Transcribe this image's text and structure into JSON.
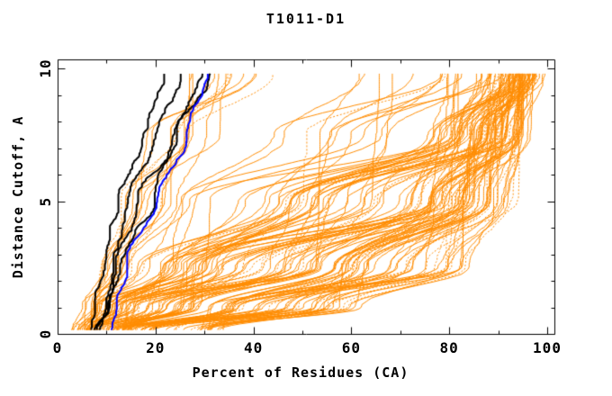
{
  "page": {
    "background": "#ffffff"
  },
  "chart_data": {
    "type": "line",
    "title": "T1011-D1",
    "xlabel": "Percent of Residues (CA)",
    "ylabel": "Distance Cutoff, A",
    "xlim": [
      0,
      101.4
    ],
    "ylim": [
      0,
      10.3
    ],
    "x_ticks_major": [
      0,
      20,
      40,
      60,
      80,
      100
    ],
    "x_ticks_minor": [
      10,
      30,
      50,
      70,
      90
    ],
    "y_ticks_major": [
      0,
      5,
      10
    ],
    "y_ticks_minor": [
      1,
      2,
      3,
      4,
      6,
      7,
      8,
      9
    ],
    "grid": false,
    "legend": "none",
    "colors": {
      "ensemble_orange": "#ff8c00",
      "highlight_black": "#000000",
      "highlight_blue": "#0000ff",
      "axis": "#000000",
      "background": "#ffffff"
    },
    "curve_cutoff_range": [
      0.15,
      9.8
    ],
    "knot_cutoffs": [
      0.15,
      1,
      2.5,
      5,
      7.5,
      9.8
    ],
    "black_curves_percent_at_knots": [
      [
        7.0,
        8.5,
        10.5,
        13.5,
        17.5,
        22.0
      ],
      [
        7.5,
        9.3,
        11.3,
        16.0,
        21.5,
        26.5
      ],
      [
        8.0,
        10.0,
        12.2,
        17.5,
        24.0,
        29.5
      ],
      [
        8.6,
        10.6,
        12.8,
        19.0,
        25.5,
        33.0
      ]
    ],
    "blue_curve_percent_at_knots": [
      11.0,
      12.0,
      14.0,
      20.5,
      27.0,
      31.5
    ],
    "orange_generator": {
      "seed": 7,
      "dash_fraction": 0.22,
      "wiggle_amp": 0.4,
      "classes": [
        {
          "name": "steep-left",
          "count": 14,
          "knots": [
            [
              3,
              7
            ],
            [
              5,
              10
            ],
            [
              8,
              15
            ],
            [
              12,
              24
            ],
            [
              16,
              33
            ],
            [
              20,
              45
            ]
          ]
        },
        {
          "name": "mid-arc",
          "count": 20,
          "knots": [
            [
              4,
              10
            ],
            [
              7,
              16
            ],
            [
              12,
              32
            ],
            [
              25,
              65
            ],
            [
              45,
              88
            ],
            [
              60,
              96
            ]
          ]
        },
        {
          "name": "river-band",
          "count": 46,
          "knots": [
            [
              5,
              16
            ],
            [
              10,
              30
            ],
            [
              20,
              55
            ],
            [
              45,
              85
            ],
            [
              75,
              94
            ],
            [
              86,
              97.5
            ]
          ]
        },
        {
          "name": "fast-right",
          "count": 48,
          "knots": [
            [
              10,
              34
            ],
            [
              30,
              62
            ],
            [
              55,
              84
            ],
            [
              75,
              93
            ],
            [
              85,
              96
            ],
            [
              90,
              98.5
            ]
          ]
        }
      ]
    },
    "note": "Cumulative distance-cutoff curves: ~128 orange model curves, 4 black highlighted curves, 1 blue highlighted curve; curves rise from ~0 A to ~9.8 A cutoff."
  }
}
